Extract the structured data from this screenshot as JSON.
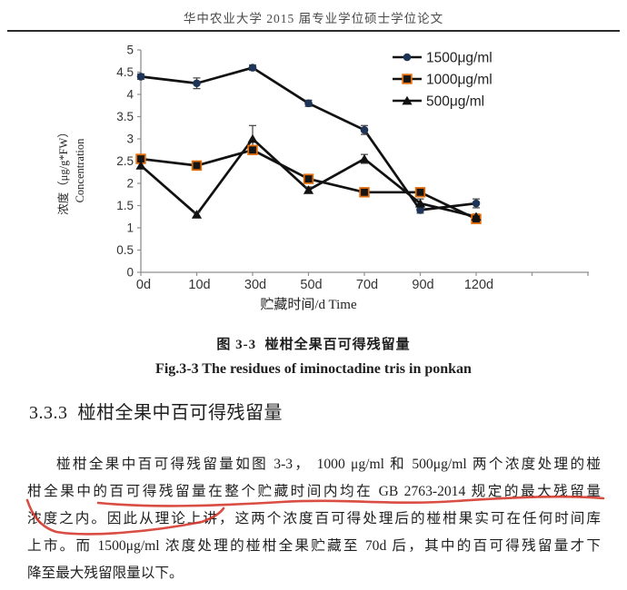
{
  "header": {
    "text": "华中农业大学 2015 届专业学位硕士学位论文"
  },
  "chart_data": {
    "type": "line",
    "title": "",
    "categories": [
      "0d",
      "10d",
      "30d",
      "50d",
      "70d",
      "90d",
      "120d"
    ],
    "series": [
      {
        "name": "1500μg/ml",
        "marker": "circle",
        "marker_color": "#1F3557",
        "line_color": "#111111",
        "values": [
          4.4,
          4.25,
          4.6,
          3.8,
          3.2,
          1.4,
          1.55
        ],
        "errors": [
          0.06,
          0.12,
          0.06,
          0.07,
          0.1,
          0.07,
          0.1
        ]
      },
      {
        "name": "1000μg/ml",
        "marker": "square",
        "marker_color": "#161616",
        "marker_border_color": "#E26B0A",
        "line_color": "#111111",
        "values": [
          2.55,
          2.4,
          2.75,
          2.1,
          1.8,
          1.8,
          1.2
        ],
        "errors": [
          0.05,
          0.05,
          0.07,
          0.05,
          0.05,
          0.05,
          0.05
        ]
      },
      {
        "name": "500μg/ml",
        "marker": "triangle",
        "marker_color": "#111111",
        "line_color": "#111111",
        "values": [
          2.4,
          1.3,
          3.0,
          1.85,
          2.55,
          1.55,
          1.25
        ],
        "errors": [
          0.05,
          0.05,
          0.3,
          0.07,
          0.1,
          0.1,
          0.06
        ]
      }
    ],
    "xlabel": "贮藏时间/d Time",
    "ylabel_cn": "浓度（μg/g*FW）",
    "ylabel_en": "Concentration",
    "ylim": [
      0,
      5
    ],
    "ytick_labels": [
      "0",
      "0.5",
      "1",
      "1.5",
      "2",
      "2.5",
      "3",
      "3.5",
      "4",
      "4.5",
      "5"
    ],
    "grid": false,
    "error_bars": true,
    "legend_position": "top-right",
    "axis_color": "#8f8f8f",
    "errorbar_color": "#3f3f3f"
  },
  "figure": {
    "caption_cn": "图 3-3  椪柑全果百可得残留量",
    "caption_en": "Fig.3-3 The residues of iminoctadine tris in ponkan"
  },
  "section": {
    "heading": "3.3.3  椪柑全果中百可得残留量"
  },
  "paragraph": {
    "lines": [
      "椪柑全果中百可得残留量如图 3-3， 1000 μg/ml 和 500μg/ml 两个浓度处理的椪",
      "柑全果中的百可得残留量在整个贮藏时间内均在 GB 2763-2014 规定的最大残留量",
      "浓度之内。因此从理论上讲，这两个浓度百可得处理后的椪柑果实可在任何时间库",
      "上市。而 1500μg/ml 浓度处理的椪柑全果贮藏至 70d 后，其中的百可得残留量才下",
      "降至最大残留限量以下。"
    ]
  },
  "annotation": {
    "color": "#d4352a"
  }
}
